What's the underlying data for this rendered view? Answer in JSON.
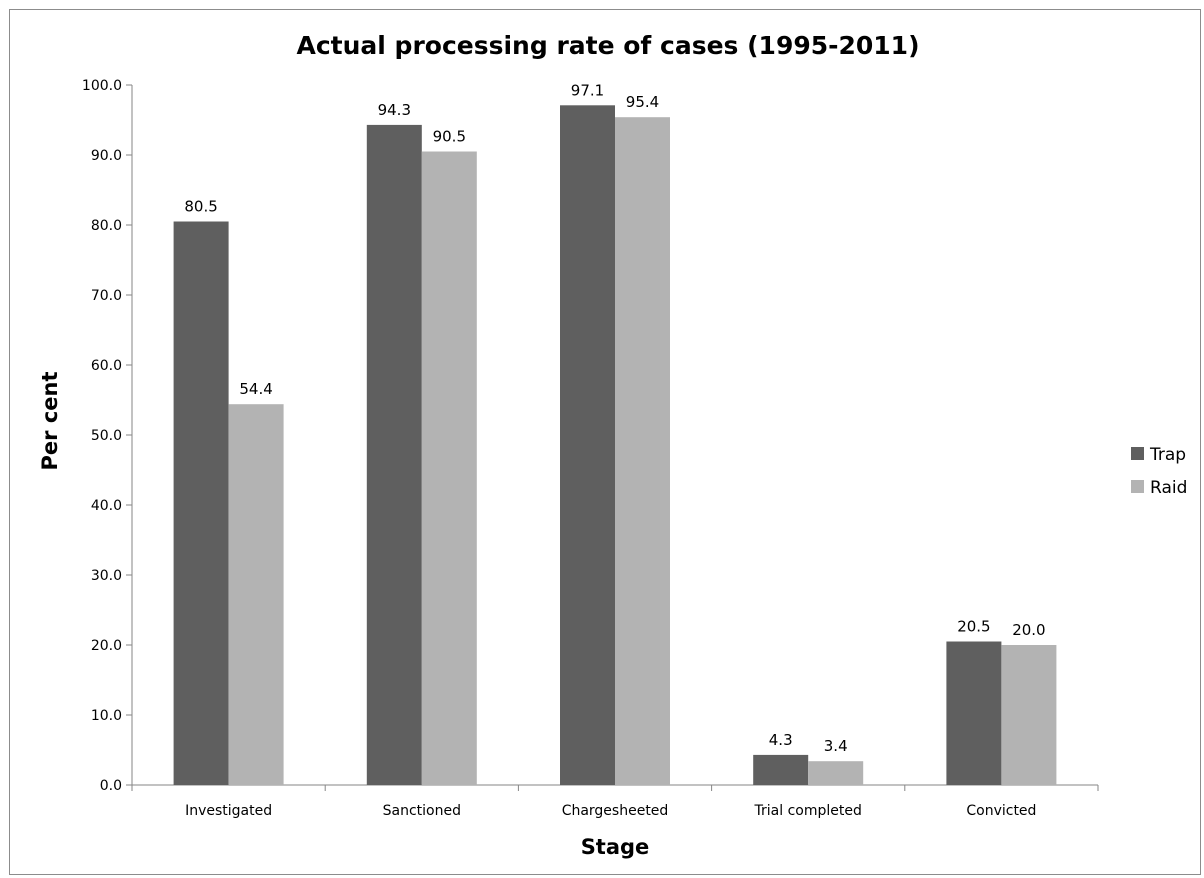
{
  "chart_data": {
    "type": "bar",
    "title": "Actual processing rate of cases (1995-2011)",
    "xlabel": "Stage",
    "ylabel": "Per cent",
    "ylim": [
      0,
      100
    ],
    "yticks": [
      "0.0",
      "10.0",
      "20.0",
      "30.0",
      "40.0",
      "50.0",
      "60.0",
      "70.0",
      "80.0",
      "90.0",
      "100.0"
    ],
    "categories": [
      "Investigated",
      "Sanctioned",
      "Chargesheeted",
      "Trial completed",
      "Convicted"
    ],
    "series": [
      {
        "name": "Trap",
        "color": "#5f5f5f",
        "values": [
          80.5,
          94.3,
          97.1,
          4.3,
          20.5
        ],
        "labels": [
          "80.5",
          "94.3",
          "97.1",
          "4.3",
          "20.5"
        ]
      },
      {
        "name": "Raid",
        "color": "#b3b3b3",
        "values": [
          54.4,
          90.5,
          95.4,
          3.4,
          20.0
        ],
        "labels": [
          "54.4",
          "90.5",
          "95.4",
          "3.4",
          "20.0"
        ]
      }
    ],
    "grid": false,
    "legend_position": "right"
  }
}
